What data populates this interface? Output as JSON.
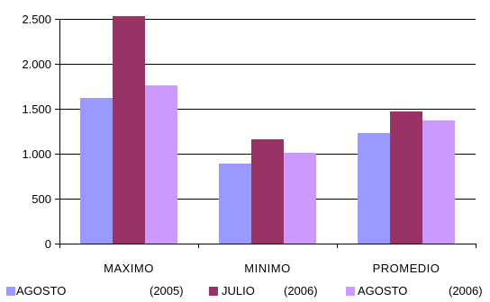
{
  "chart_data": {
    "type": "bar",
    "categories": [
      "MAXIMO",
      "MINIMO",
      "PROMEDIO"
    ],
    "series": [
      {
        "name": "AGOSTO",
        "year": "(2005)",
        "color": "#9999FF",
        "values": [
          1620,
          890,
          1230
        ]
      },
      {
        "name": "JULIO",
        "year": "(2006)",
        "color": "#993366",
        "values": [
          2530,
          1160,
          1470
        ]
      },
      {
        "name": "AGOSTO",
        "year": "(2006)",
        "color": "#CC99FF",
        "values": [
          1760,
          1010,
          1370
        ]
      }
    ],
    "y_ticks": [
      0,
      500,
      1000,
      1500,
      2000,
      2500
    ],
    "y_tick_labels": [
      "0",
      "500",
      "1.000",
      "1.500",
      "2.000",
      "2.500"
    ],
    "ylim": [
      0,
      2500
    ],
    "grid": true,
    "legend_position": "bottom",
    "gridline_color": "#000000",
    "axis_color": "#000000"
  }
}
